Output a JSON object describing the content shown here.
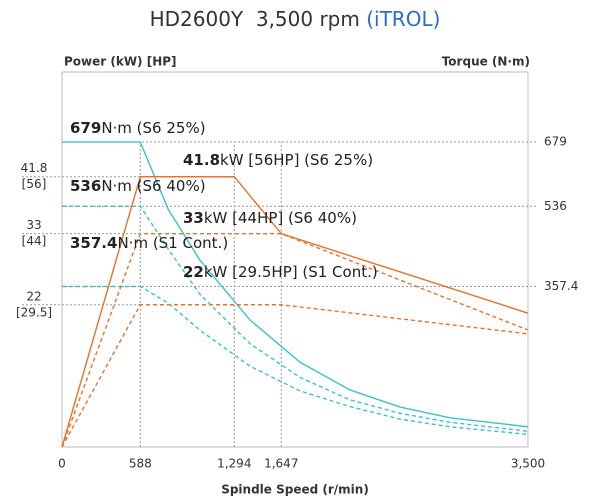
{
  "chart_data": {
    "type": "line",
    "title": "HD2600Y  3,500 rpm",
    "title_suffix": "(iTROL)",
    "y_label": "Power (kW) [HP]",
    "y2_label": "Torque (N·m)",
    "x_label": "Spindle Speed (r/min)",
    "xlim": [
      0,
      3500
    ],
    "xticks": [
      0,
      588,
      {
        "value": 1294,
        "label": "1,294"
      },
      {
        "value": 1647,
        "label": "1,647"
      },
      {
        "value": 3500,
        "label": "3,500"
      }
    ],
    "ylim": [
      0,
      58
    ],
    "yticks": [
      41.8,
      33,
      22
    ],
    "ytick_hp_labels": [
      "[56]",
      "[44]",
      "[29.5]"
    ],
    "y2lim": [
      0,
      835
    ],
    "y2ticks": [
      679,
      536,
      357.4
    ],
    "series": [
      {
        "name": "S6 25% Torque",
        "axis": "y2",
        "color": "#3cc3c8",
        "dashed": false,
        "x": [
          0,
          588,
          800,
          1036,
          1412,
          1787,
          2163,
          2539,
          2914,
          3500
        ],
        "values": [
          679,
          679,
          528,
          416,
          283,
          189,
          127,
          89,
          65,
          45
        ]
      },
      {
        "name": "S6 40% Torque",
        "axis": "y2",
        "color": "#3cc3c8",
        "dashed": true,
        "x": [
          0,
          588,
          800,
          1036,
          1412,
          1787,
          2163,
          2539,
          2914,
          3500
        ],
        "values": [
          536,
          536,
          440,
          340,
          230,
          155,
          105,
          75,
          55,
          35
        ]
      },
      {
        "name": "S1 Cont. Torque",
        "axis": "y2",
        "color": "#3cc3c8",
        "dashed": true,
        "x": [
          0,
          588,
          800,
          1036,
          1412,
          1787,
          2163,
          2539,
          2914,
          3500
        ],
        "values": [
          357.4,
          357.4,
          320,
          260,
          180,
          125,
          90,
          62,
          45,
          28
        ]
      },
      {
        "name": "S6 25% Power",
        "axis": "y",
        "color": "#e8722c",
        "dashed": false,
        "x": [
          0,
          588,
          1294,
          1647,
          3500
        ],
        "values": [
          0,
          41.8,
          41.8,
          33,
          20.7
        ]
      },
      {
        "name": "S6 40% Power",
        "axis": "y",
        "color": "#e8722c",
        "dashed": true,
        "x": [
          0,
          588,
          1647,
          3500
        ],
        "values": [
          0,
          33,
          33,
          18.1
        ]
      },
      {
        "name": "S1 Cont. Power",
        "axis": "y",
        "color": "#e8722c",
        "dashed": true,
        "x": [
          0,
          588,
          1647,
          3500
        ],
        "values": [
          0,
          22,
          22,
          17.5
        ]
      }
    ],
    "annotations": [
      {
        "bold": "679",
        "text": "N·m (S6 25%)"
      },
      {
        "bold": "41.8",
        "text": "kW [56HP] (S6 25%)"
      },
      {
        "bold": "536",
        "text": "N·m (S6 40%)"
      },
      {
        "bold": "33",
        "text": "kW [44HP] (S6 40%)"
      },
      {
        "bold": "357.4",
        "text": "N·m (S1 Cont.)"
      },
      {
        "bold": "22",
        "text": "kW [29.5HP] (S1 Cont.)"
      }
    ]
  }
}
